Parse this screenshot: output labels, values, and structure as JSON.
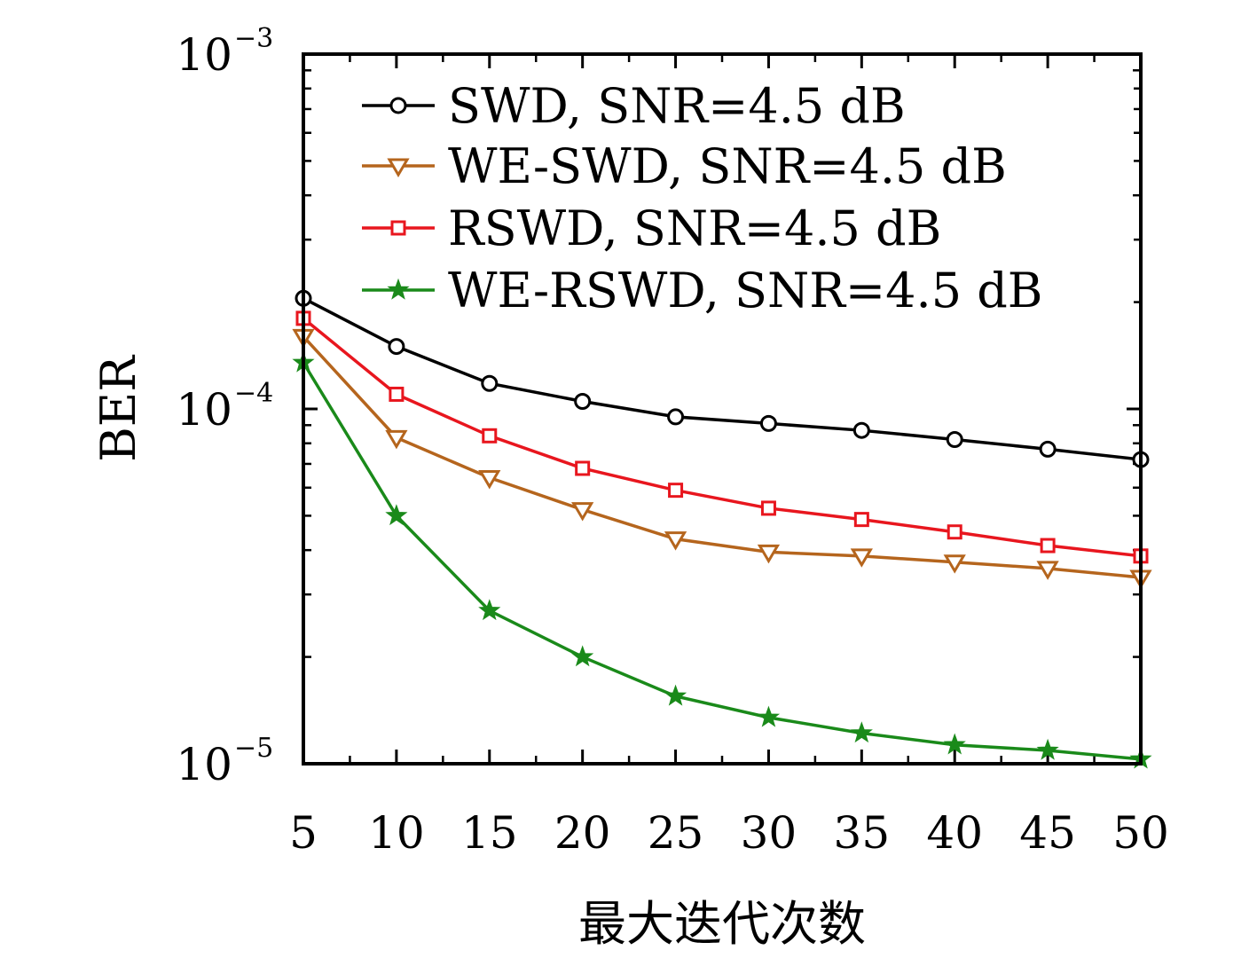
{
  "chart_data": {
    "type": "line",
    "title": "",
    "xlabel": "最大迭代次数",
    "ylabel": "BER",
    "x": [
      5,
      10,
      15,
      20,
      25,
      30,
      35,
      40,
      45,
      50
    ],
    "xlim": [
      5,
      50
    ],
    "ylim": [
      1e-05,
      0.001
    ],
    "yscale": "log",
    "x_tick_labels": [
      "5",
      "10",
      "15",
      "20",
      "25",
      "30",
      "35",
      "40",
      "45",
      "50"
    ],
    "y_tick_labels": [
      {
        "base": "10",
        "exp": "−5",
        "value": 1e-05
      },
      {
        "base": "10",
        "exp": "−4",
        "value": 0.0001
      },
      {
        "base": "10",
        "exp": "−3",
        "value": 0.001
      }
    ],
    "grid": false,
    "legend_position": "top-right",
    "series": [
      {
        "name": "SWD, SNR=4.5 dB",
        "color": "#000000",
        "marker": "circle",
        "values": [
          0.000205,
          0.00015,
          0.000118,
          0.000105,
          9.5e-05,
          9.1e-05,
          8.7e-05,
          8.2e-05,
          7.7e-05,
          7.2e-05
        ]
      },
      {
        "name": "WE-SWD, SNR=4.5 dB",
        "color": "#b5651d",
        "marker": "triangle-down",
        "values": [
          0.00016,
          8.3e-05,
          6.4e-05,
          5.2e-05,
          4.3e-05,
          3.95e-05,
          3.85e-05,
          3.7e-05,
          3.55e-05,
          3.35e-05
        ]
      },
      {
        "name": "RSWD, SNR=4.5 dB",
        "color": "#e8161e",
        "marker": "square",
        "values": [
          0.00018,
          0.00011,
          8.4e-05,
          6.8e-05,
          5.9e-05,
          5.25e-05,
          4.88e-05,
          4.5e-05,
          4.12e-05,
          3.85e-05
        ]
      },
      {
        "name": "WE-RSWD, SNR=4.5 dB",
        "color": "#1a8a1a",
        "marker": "star",
        "values": [
          0.000135,
          5e-05,
          2.7e-05,
          2e-05,
          1.55e-05,
          1.35e-05,
          1.22e-05,
          1.13e-05,
          1.09e-05,
          1.03e-05
        ]
      }
    ]
  }
}
